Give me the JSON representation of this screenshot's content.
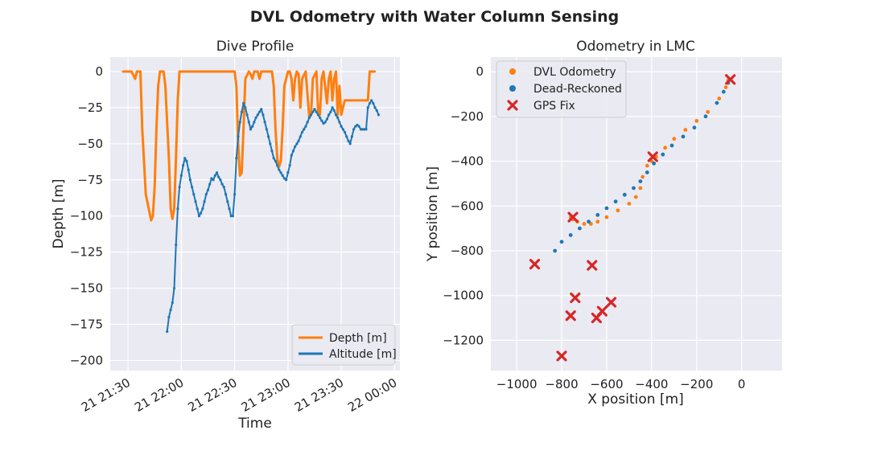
{
  "figure": {
    "suptitle": "DVL Odometry with Water Column Sensing"
  },
  "chart_data": [
    {
      "type": "line",
      "title": "Dive Profile",
      "xlabel": "Time",
      "ylabel": "Depth [m]",
      "x_tick_labels": [
        "21 21:30",
        "21 22:00",
        "21 22:30",
        "21 23:00",
        "21 23:30",
        "22 00:00"
      ],
      "x_ticks_minutes": [
        90,
        120,
        150,
        180,
        210,
        240
      ],
      "xlim_minutes": [
        80,
        243
      ],
      "y_ticks": [
        0,
        -25,
        -50,
        -75,
        -100,
        -125,
        -150,
        -175,
        -200
      ],
      "ylim": [
        -207,
        10
      ],
      "grid": true,
      "legend_position": "lower-right",
      "series": [
        {
          "name": "Depth [m]",
          "color": "#ff7f0e",
          "x_minutes": [
            87,
            92,
            94,
            95,
            97,
            98,
            100,
            103,
            104,
            105,
            106,
            107,
            108,
            110,
            111,
            113,
            114,
            115,
            116,
            117,
            118,
            119,
            121,
            122,
            124,
            125,
            150,
            151,
            152,
            153,
            154,
            155,
            156,
            158,
            159,
            160,
            161,
            163,
            164,
            165,
            167,
            168,
            170,
            171,
            172,
            173,
            174,
            175,
            176,
            177,
            178,
            180,
            181,
            182,
            183,
            184,
            185,
            186,
            187,
            188,
            190,
            192,
            193,
            194,
            196,
            197,
            198,
            199,
            200,
            202,
            203,
            204,
            205,
            206,
            207,
            208,
            209,
            210,
            211,
            212,
            213,
            225,
            226,
            227,
            229
          ],
          "values": [
            0,
            0,
            -5,
            0,
            0,
            -40,
            -85,
            -103,
            -100,
            -80,
            -40,
            -10,
            0,
            0,
            -10,
            -60,
            -95,
            -102,
            -95,
            -60,
            -20,
            0,
            0,
            0,
            0,
            0,
            0,
            -10,
            -50,
            -72,
            -70,
            -40,
            -5,
            0,
            -2,
            -5,
            0,
            0,
            -5,
            0,
            0,
            0,
            0,
            0,
            -10,
            -40,
            -60,
            -66,
            -62,
            -40,
            -10,
            0,
            0,
            -5,
            -20,
            -5,
            0,
            -2,
            -25,
            -5,
            0,
            -32,
            -30,
            -5,
            0,
            -28,
            -30,
            -5,
            0,
            -22,
            -5,
            0,
            -20,
            -5,
            0,
            -30,
            -10,
            -30,
            -25,
            -20,
            -20,
            -20,
            0,
            0,
            0
          ]
        },
        {
          "name": "Altitude [m]",
          "color": "#1f77b4",
          "x_minutes": [
            112,
            113,
            114,
            115,
            116,
            117,
            118,
            119,
            120,
            121,
            122,
            123,
            124,
            125,
            126,
            127,
            128,
            129,
            130,
            131,
            132,
            133,
            134,
            135,
            136,
            137,
            138,
            139,
            140,
            141,
            142,
            143,
            144,
            145,
            146,
            147,
            148,
            149,
            150,
            151,
            152,
            153,
            154,
            155,
            156,
            157,
            158,
            159,
            160,
            161,
            162,
            163,
            164,
            165,
            166,
            167,
            168,
            169,
            170,
            171,
            172,
            173,
            174,
            175,
            176,
            177,
            178,
            179,
            180,
            181,
            182,
            183,
            184,
            185,
            186,
            187,
            188,
            189,
            190,
            191,
            192,
            193,
            194,
            195,
            196,
            197,
            198,
            199,
            200,
            201,
            202,
            203,
            204,
            205,
            206,
            207,
            208,
            209,
            210,
            211,
            212,
            213,
            214,
            215,
            216,
            217,
            218,
            219,
            220,
            221,
            222,
            223,
            224,
            225,
            226,
            227,
            228,
            229,
            230,
            231
          ],
          "values": [
            -180,
            -170,
            -165,
            -160,
            -150,
            -120,
            -95,
            -80,
            -72,
            -65,
            -60,
            -62,
            -68,
            -75,
            -80,
            -85,
            -90,
            -95,
            -100,
            -98,
            -95,
            -90,
            -85,
            -82,
            -78,
            -74,
            -75,
            -72,
            -70,
            -73,
            -75,
            -78,
            -80,
            -85,
            -90,
            -95,
            -100,
            -100,
            -85,
            -60,
            -45,
            -35,
            -28,
            -22,
            -25,
            -30,
            -35,
            -40,
            -38,
            -35,
            -32,
            -30,
            -28,
            -26,
            -30,
            -35,
            -40,
            -45,
            -50,
            -55,
            -60,
            -62,
            -65,
            -68,
            -70,
            -72,
            -74,
            -75,
            -70,
            -65,
            -58,
            -55,
            -52,
            -50,
            -48,
            -45,
            -42,
            -40,
            -38,
            -35,
            -32,
            -30,
            -28,
            -26,
            -28,
            -30,
            -32,
            -34,
            -36,
            -35,
            -33,
            -30,
            -28,
            -25,
            -27,
            -30,
            -32,
            -35,
            -38,
            -40,
            -42,
            -45,
            -48,
            -50,
            -45,
            -40,
            -38,
            -37,
            -38,
            -40,
            -40,
            -40,
            -40,
            -25,
            -22,
            -20,
            -22,
            -25,
            -27,
            -30
          ]
        }
      ]
    },
    {
      "type": "scatter",
      "title": "Odometry in LMC",
      "xlabel": "X position [m]",
      "ylabel": "Y position [m]",
      "x_ticks": [
        -1000,
        -800,
        -600,
        -400,
        -200,
        0
      ],
      "y_ticks": [
        0,
        -200,
        -400,
        -600,
        -800,
        -1000,
        -1200
      ],
      "xlim": [
        -1115,
        180
      ],
      "ylim": [
        -1335,
        65
      ],
      "grid": true,
      "legend_position": "top-left",
      "series": [
        {
          "name": "DVL Odometry",
          "color": "#ff7f0e",
          "x": [
            -60,
            -70,
            -100,
            -150,
            -200,
            -250,
            -300,
            -340,
            -380,
            -400,
            -420,
            -440,
            -450,
            -470,
            -500,
            -550,
            -600,
            -640,
            -670,
            -700,
            -730,
            -750,
            -760
          ],
          "y": [
            -40,
            -70,
            -120,
            -180,
            -220,
            -260,
            -300,
            -340,
            -380,
            -400,
            -420,
            -470,
            -520,
            -560,
            -590,
            -620,
            -650,
            -670,
            -680,
            -680,
            -670,
            -660,
            -650
          ]
        },
        {
          "name": "Dead-Reckoned",
          "color": "#1f77b4",
          "x": [
            -60,
            -80,
            -110,
            -160,
            -210,
            -260,
            -310,
            -350,
            -390,
            -420,
            -450,
            -480,
            -520,
            -560,
            -600,
            -640,
            -680,
            -720,
            -760,
            -800,
            -830
          ],
          "y": [
            -50,
            -90,
            -140,
            -200,
            -250,
            -290,
            -330,
            -370,
            -410,
            -450,
            -490,
            -520,
            -550,
            -580,
            -610,
            -640,
            -670,
            -700,
            -730,
            -760,
            -800
          ]
        },
        {
          "name": "GPS Fix",
          "color": "#d62728",
          "x": [
            -50,
            -395,
            -750,
            -920,
            -665,
            -740,
            -620,
            -760,
            -580,
            -645,
            -800
          ],
          "y": [
            -35,
            -380,
            -650,
            -860,
            -865,
            -1010,
            -1070,
            -1090,
            -1030,
            -1100,
            -1270
          ]
        }
      ]
    }
  ]
}
